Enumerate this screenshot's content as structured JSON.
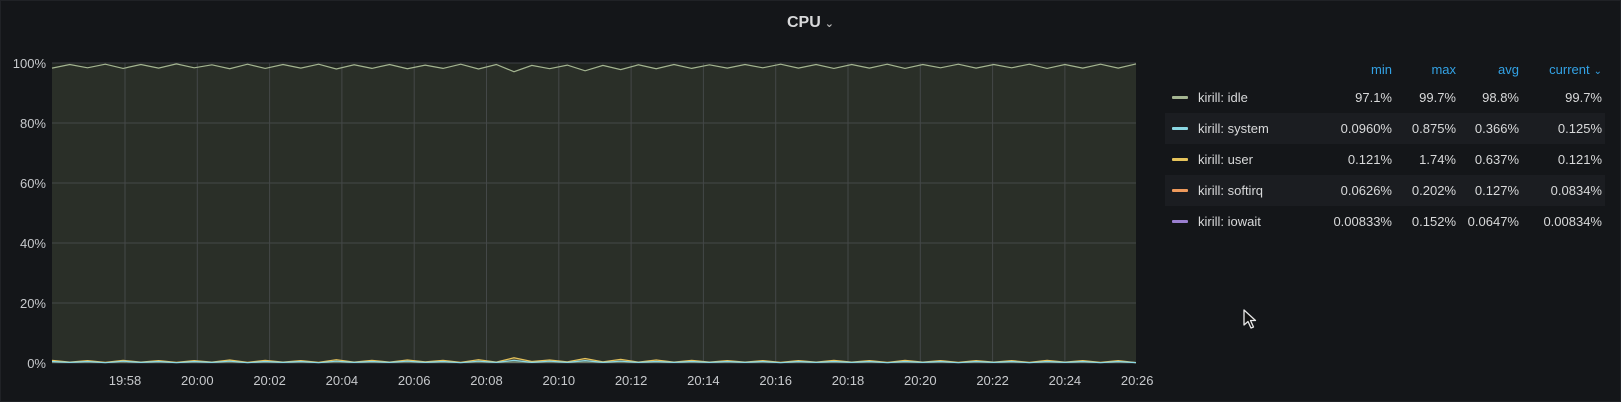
{
  "panel": {
    "title": "CPU"
  },
  "legend": {
    "headers": {
      "min": "min",
      "max": "max",
      "avg": "avg",
      "current": "current"
    },
    "rows": [
      {
        "name": "kirill: idle",
        "color": "#a4b591",
        "min": "97.1%",
        "max": "99.7%",
        "avg": "98.8%",
        "current": "99.7%"
      },
      {
        "name": "kirill: system",
        "color": "#8ad7e3",
        "min": "0.0960%",
        "max": "0.875%",
        "avg": "0.366%",
        "current": "0.125%"
      },
      {
        "name": "kirill: user",
        "color": "#e6c35b",
        "min": "0.121%",
        "max": "1.74%",
        "avg": "0.637%",
        "current": "0.121%"
      },
      {
        "name": "kirill: softirq",
        "color": "#ee9a5c",
        "min": "0.0626%",
        "max": "0.202%",
        "avg": "0.127%",
        "current": "0.0834%"
      },
      {
        "name": "kirill: iowait",
        "color": "#9b7fd0",
        "min": "0.00833%",
        "max": "0.152%",
        "avg": "0.0647%",
        "current": "0.00834%"
      }
    ]
  },
  "chart_data": {
    "type": "area",
    "y_ticks": [
      "0%",
      "20%",
      "40%",
      "60%",
      "80%",
      "100%"
    ],
    "x_ticks": [
      "19:58",
      "20:00",
      "20:02",
      "20:04",
      "20:06",
      "20:08",
      "20:10",
      "20:12",
      "20:14",
      "20:16",
      "20:18",
      "20:20",
      "20:22",
      "20:24",
      "20:26"
    ],
    "ylim": [
      0,
      100
    ],
    "grid": true,
    "legend_position": "right",
    "series": [
      {
        "name": "kirill: idle",
        "color": "#a4b591",
        "values": [
          98.3,
          99.5,
          98.4,
          99.6,
          98.2,
          99.5,
          98.3,
          99.7,
          98.4,
          99.4,
          98.1,
          99.6,
          98.2,
          99.5,
          98.3,
          99.6,
          98.0,
          99.4,
          98.2,
          99.5,
          98.1,
          99.3,
          98.2,
          99.6,
          98.0,
          99.5,
          97.1,
          99.2,
          98.1,
          99.3,
          97.4,
          99.2,
          97.8,
          99.4,
          98.1,
          99.5,
          98.2,
          99.4,
          98.3,
          99.5,
          98.4,
          99.6,
          98.3,
          99.5,
          98.2,
          99.5,
          98.3,
          99.6,
          98.2,
          99.5,
          98.4,
          99.6,
          98.3,
          99.5,
          98.4,
          99.6,
          98.2,
          99.5,
          98.3,
          99.6,
          98.3,
          99.7
        ]
      },
      {
        "name": "kirill: user",
        "color": "#e6c35b",
        "values": [
          0.9,
          0.3,
          0.8,
          0.2,
          0.9,
          0.3,
          0.8,
          0.2,
          0.8,
          0.3,
          1.0,
          0.2,
          0.9,
          0.3,
          0.8,
          0.2,
          1.1,
          0.3,
          0.9,
          0.3,
          1.0,
          0.4,
          0.9,
          0.2,
          1.1,
          0.3,
          1.74,
          0.5,
          1.0,
          0.4,
          1.5,
          0.4,
          1.2,
          0.3,
          1.0,
          0.3,
          0.9,
          0.3,
          0.8,
          0.3,
          0.8,
          0.2,
          0.8,
          0.3,
          0.9,
          0.3,
          0.8,
          0.2,
          0.9,
          0.3,
          0.8,
          0.2,
          0.8,
          0.3,
          0.8,
          0.2,
          0.9,
          0.3,
          0.8,
          0.2,
          0.8,
          0.121
        ]
      },
      {
        "name": "kirill: system",
        "color": "#8ad7e3",
        "values": [
          0.5,
          0.2,
          0.5,
          0.1,
          0.6,
          0.2,
          0.5,
          0.1,
          0.5,
          0.2,
          0.6,
          0.1,
          0.5,
          0.2,
          0.5,
          0.1,
          0.6,
          0.2,
          0.5,
          0.2,
          0.6,
          0.2,
          0.5,
          0.1,
          0.6,
          0.2,
          0.875,
          0.2,
          0.6,
          0.2,
          0.8,
          0.2,
          0.6,
          0.2,
          0.5,
          0.2,
          0.5,
          0.2,
          0.5,
          0.2,
          0.5,
          0.1,
          0.5,
          0.2,
          0.5,
          0.2,
          0.5,
          0.1,
          0.5,
          0.2,
          0.5,
          0.1,
          0.5,
          0.2,
          0.5,
          0.1,
          0.5,
          0.2,
          0.5,
          0.1,
          0.5,
          0.125
        ]
      }
    ]
  }
}
